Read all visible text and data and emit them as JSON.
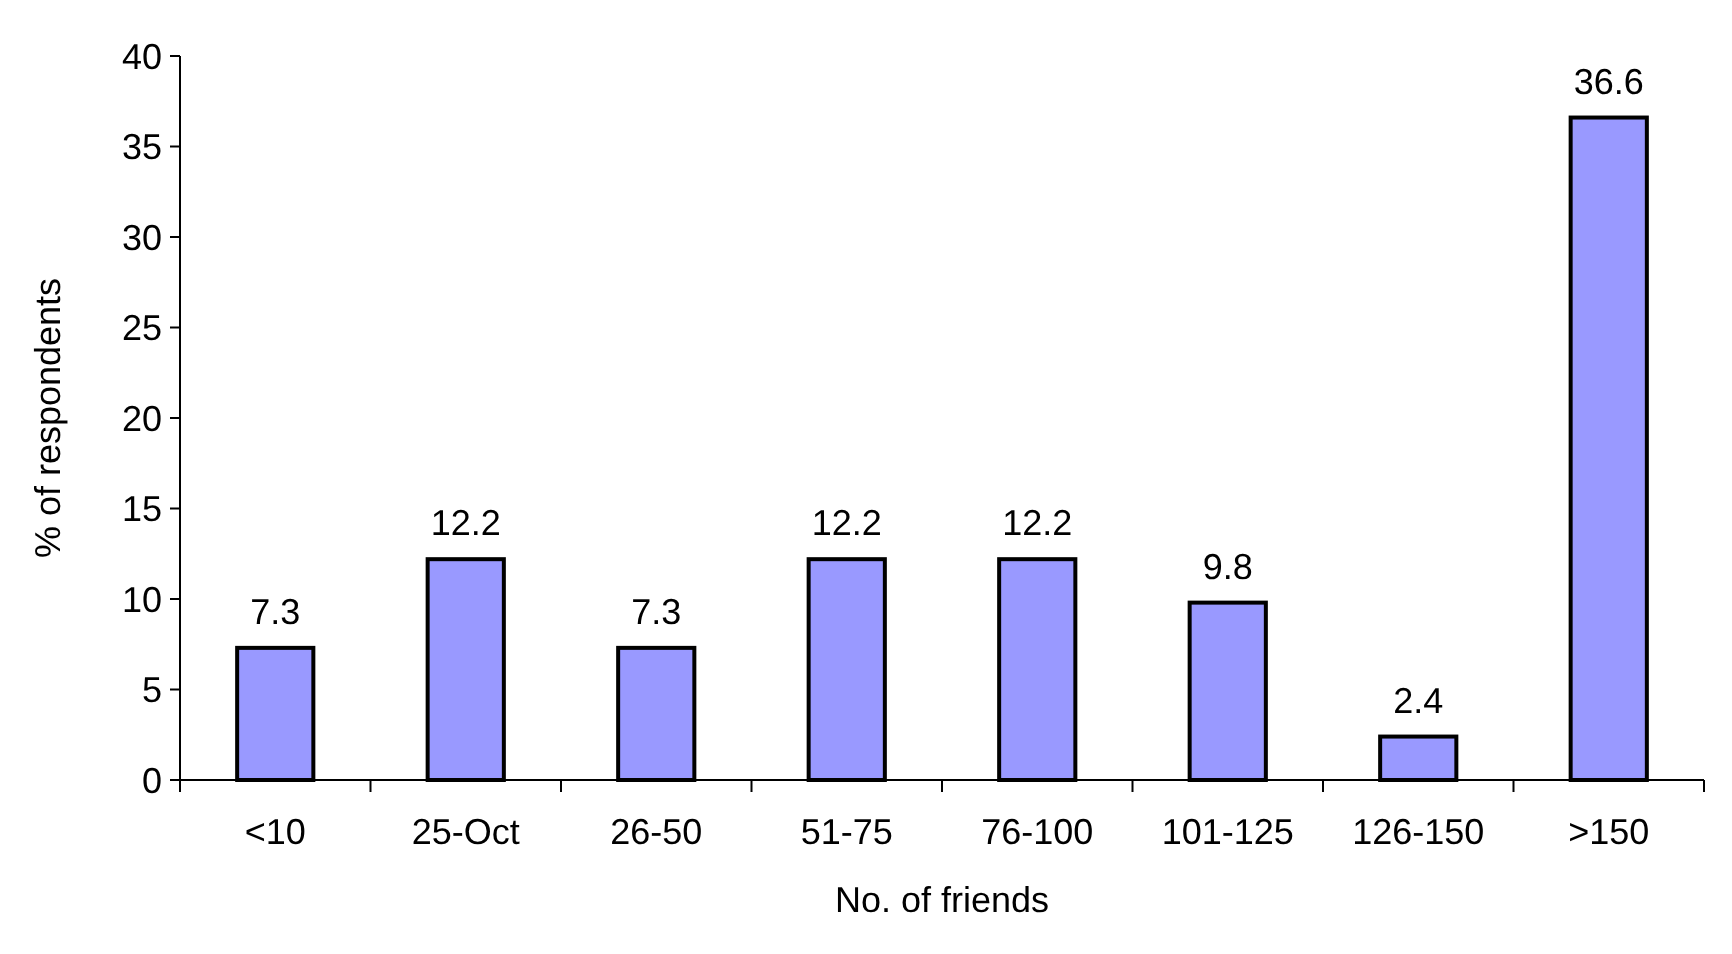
{
  "chart_data": {
    "type": "bar",
    "xlabel": "No. of friends",
    "ylabel": "% of respondents",
    "categories": [
      "<10",
      "25-Oct",
      "26-50",
      "51-75",
      "76-100",
      "101-125",
      "126-150",
      ">150"
    ],
    "values": [
      7.3,
      12.2,
      7.3,
      12.2,
      12.2,
      9.8,
      2.4,
      36.6
    ],
    "color": "#9999ff",
    "ylim": [
      0,
      40
    ],
    "yticks": [
      0,
      5,
      10,
      15,
      20,
      25,
      30,
      35,
      40
    ],
    "data_labels": true
  }
}
